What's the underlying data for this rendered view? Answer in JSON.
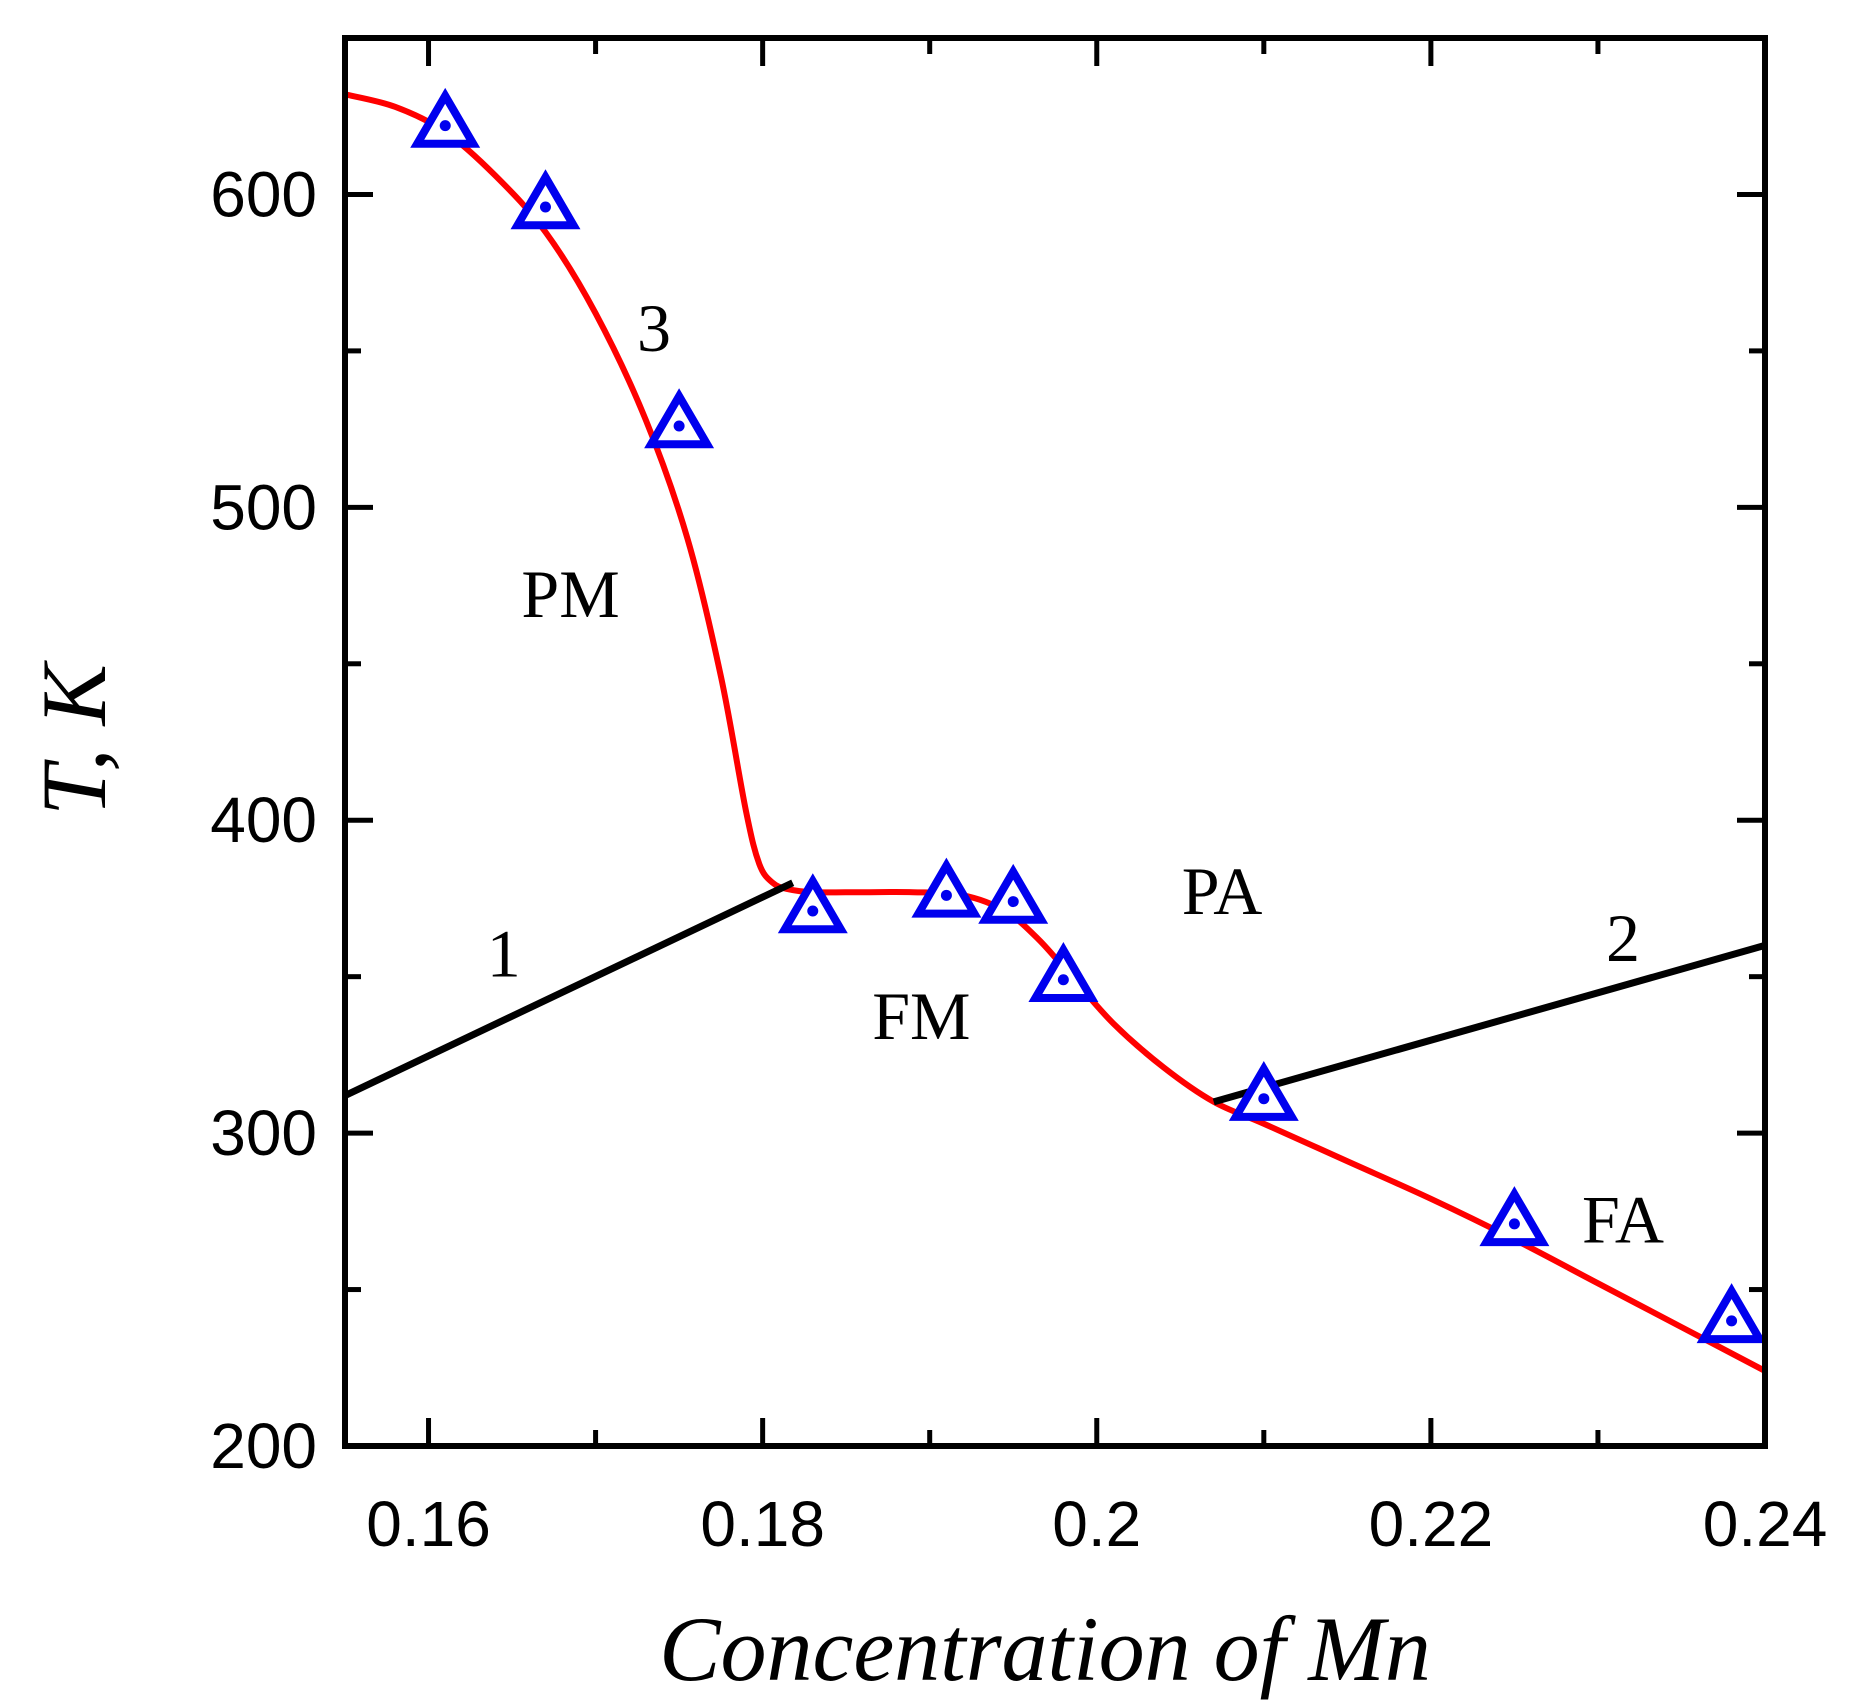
{
  "chart_data": {
    "type": "line",
    "title": "",
    "xlabel": "Concentration of Mn",
    "ylabel": "T, K",
    "xlim": [
      0.155,
      0.24
    ],
    "ylim": [
      200,
      650
    ],
    "x_ticks": [
      0.16,
      0.18,
      0.2,
      0.22,
      0.24
    ],
    "x_tick_labels": [
      "0.16",
      "0.18",
      "0.2",
      "0.22",
      "0.24"
    ],
    "y_ticks": [
      200,
      300,
      400,
      500,
      600
    ],
    "y_tick_labels": [
      "200",
      "300",
      "400",
      "500",
      "600"
    ],
    "grid": false,
    "series": [
      {
        "name": "3",
        "kind": "curve",
        "color": "#ff0000",
        "x": [
          0.155,
          0.158,
          0.161,
          0.164,
          0.167,
          0.17,
          0.173,
          0.1755,
          0.1775,
          0.179,
          0.1798,
          0.1806,
          0.1815,
          0.183,
          0.186,
          0.189,
          0.192,
          0.1945,
          0.1965,
          0.1985,
          0.201,
          0.204,
          0.207,
          0.21,
          0.215,
          0.22,
          0.225,
          0.23,
          0.235,
          0.24
        ],
        "y": [
          632,
          628,
          620,
          606,
          588,
          562,
          528,
          490,
          446,
          403,
          386,
          380,
          378,
          377,
          377,
          377,
          376,
          371,
          362,
          350,
          335,
          321,
          310,
          303,
          291,
          279,
          266,
          252,
          238,
          224
        ]
      },
      {
        "name": "1",
        "kind": "line",
        "color": "#000000",
        "x": [
          0.155,
          0.1818
        ],
        "y": [
          312,
          380
        ]
      },
      {
        "name": "2",
        "kind": "line",
        "color": "#000000",
        "x": [
          0.207,
          0.24
        ],
        "y": [
          310,
          360
        ]
      },
      {
        "name": "markers",
        "kind": "scatter",
        "marker": "triangle-dot",
        "color": "#0000ee",
        "x": [
          0.161,
          0.167,
          0.175,
          0.183,
          0.191,
          0.195,
          0.198,
          0.21,
          0.225,
          0.238
        ],
        "y": [
          622,
          596,
          526,
          371,
          376,
          374,
          349,
          311,
          271,
          240
        ]
      }
    ],
    "annotations": [
      {
        "text": "3",
        "x": 0.1735,
        "y": 550
      },
      {
        "text": "PM",
        "x": 0.1685,
        "y": 465
      },
      {
        "text": "1",
        "x": 0.1645,
        "y": 350
      },
      {
        "text": "PA",
        "x": 0.2075,
        "y": 370
      },
      {
        "text": "FM",
        "x": 0.1895,
        "y": 330
      },
      {
        "text": "2",
        "x": 0.2315,
        "y": 355
      },
      {
        "text": "FA",
        "x": 0.2315,
        "y": 265
      }
    ]
  },
  "colors": {
    "curve": "#ff0000",
    "boundary": "#000000",
    "marker": "#0000ee",
    "axes": "#000000",
    "background": "#ffffff"
  }
}
